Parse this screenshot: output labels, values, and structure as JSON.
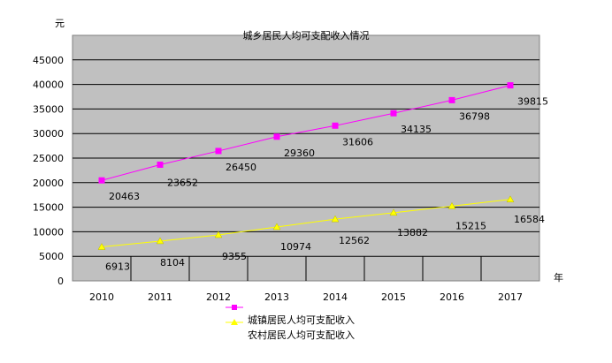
{
  "chart_data": {
    "type": "line",
    "title": "城乡居民人均可支配收入情况",
    "xlabel": "年",
    "ylabel": "元",
    "categories": [
      "2010",
      "2011",
      "2012",
      "2013",
      "2014",
      "2015",
      "2016",
      "2017"
    ],
    "ylim": [
      0,
      50000
    ],
    "yticks": [
      0,
      5000,
      10000,
      15000,
      20000,
      25000,
      30000,
      35000,
      40000,
      45000
    ],
    "grid": true,
    "legend_position": "bottom",
    "series": [
      {
        "name": "城镇居民人均可支配收入",
        "values": [
          20463,
          23652,
          26450,
          29360,
          31606,
          34135,
          36798,
          39815
        ],
        "color": "#ff00ff",
        "marker": "square"
      },
      {
        "name": "农村居民人均可支配收入",
        "values": [
          6913,
          8104,
          9355,
          10974,
          12562,
          13882,
          15215,
          16584
        ],
        "color": "#ffff00",
        "marker": "triangle"
      }
    ],
    "plot_background": "#c0c0c0"
  }
}
